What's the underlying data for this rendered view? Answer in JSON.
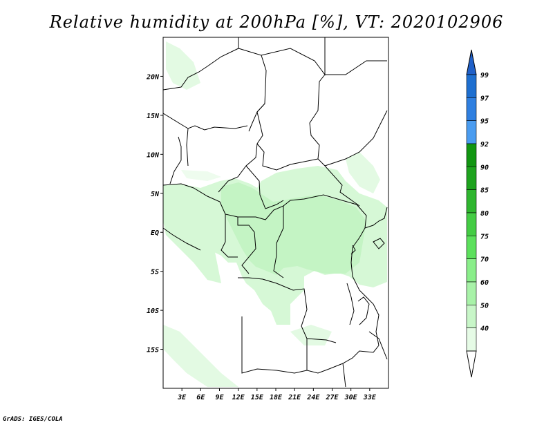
{
  "title": "Relative humidity at 200hPa [%], VT: 2020102906",
  "footer": "GrADS: IGES/COLA",
  "map": {
    "lon_range": [
      0,
      36
    ],
    "lat_range": [
      -20,
      25
    ],
    "lat_ticks": [
      {
        "value": 20,
        "label": "20N"
      },
      {
        "value": 15,
        "label": "15N"
      },
      {
        "value": 10,
        "label": "10N"
      },
      {
        "value": 5,
        "label": "5N"
      },
      {
        "value": 0,
        "label": "EQ"
      },
      {
        "value": -5,
        "label": "5S"
      },
      {
        "value": -10,
        "label": "10S"
      },
      {
        "value": -15,
        "label": "15S"
      }
    ],
    "lon_ticks": [
      {
        "value": 3,
        "label": "3E"
      },
      {
        "value": 6,
        "label": "6E"
      },
      {
        "value": 9,
        "label": "9E"
      },
      {
        "value": 12,
        "label": "12E"
      },
      {
        "value": 15,
        "label": "15E"
      },
      {
        "value": 18,
        "label": "18E"
      },
      {
        "value": 21,
        "label": "21E"
      },
      {
        "value": 24,
        "label": "24E"
      },
      {
        "value": 27,
        "label": "27E"
      },
      {
        "value": 30,
        "label": "30E"
      },
      {
        "value": 33,
        "label": "33E"
      }
    ]
  },
  "colorbar": {
    "levels": [
      {
        "label": "99",
        "color": "#1e6fd0"
      },
      {
        "label": "97",
        "color": "#2f7fe0"
      },
      {
        "label": "95",
        "color": "#4a9cf0"
      },
      {
        "label": "92",
        "color": "#129612"
      },
      {
        "label": "90",
        "color": "#1ea31e"
      },
      {
        "label": "85",
        "color": "#2fb62f"
      },
      {
        "label": "80",
        "color": "#44cc44"
      },
      {
        "label": "75",
        "color": "#5ce05c"
      },
      {
        "label": "70",
        "color": "#8aee8a"
      },
      {
        "label": "60",
        "color": "#a8f2a8"
      },
      {
        "label": "50",
        "color": "#c8f6c8"
      },
      {
        "label": "40",
        "color": "#e6fbe6"
      }
    ],
    "top_color": "#2060c8",
    "bottom_color": "#ffffff"
  },
  "colors": {
    "rh_light": "#e6fbe6",
    "rh_mid": "#c8f6c8",
    "border": "#000000"
  }
}
